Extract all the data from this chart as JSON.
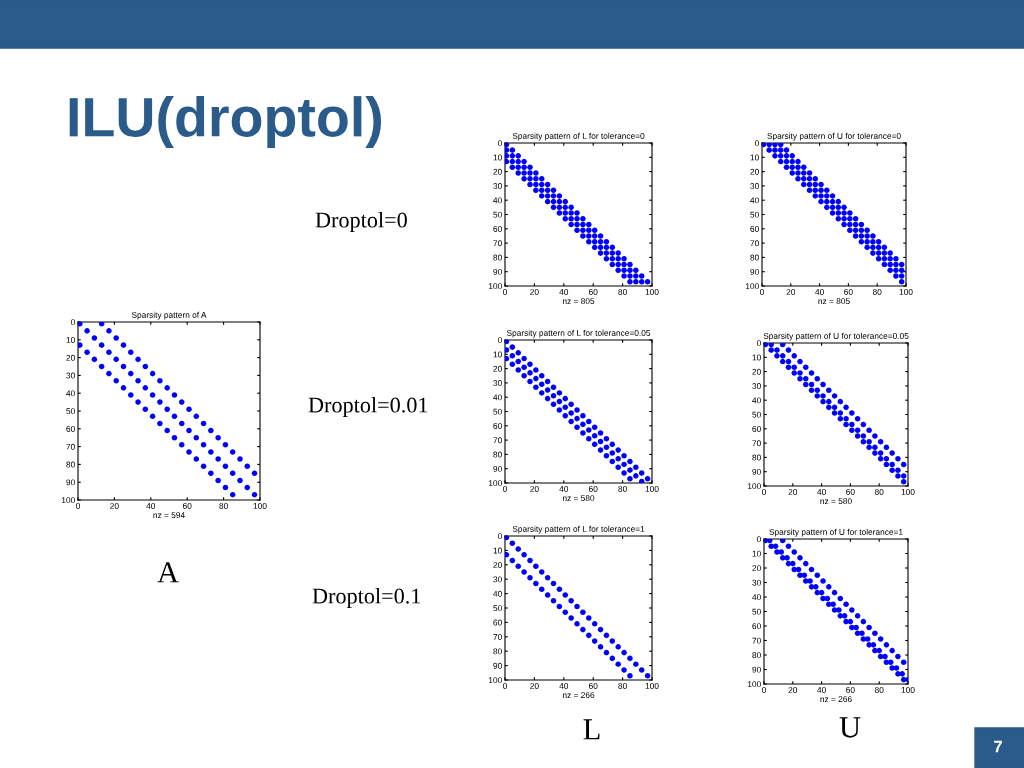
{
  "chart_data": [
    {
      "type": "other",
      "title": "ILU(droptol)",
      "annotations": [
        "Droptol=0",
        "Droptol=0.01",
        "Droptol=0.1",
        "A",
        "L",
        "U",
        "7"
      ]
    },
    {
      "type": "scatter",
      "title": "Sparsity pattern of A",
      "xlabel": "nz = 594",
      "xlim": [
        0,
        100
      ],
      "ylim": [
        100,
        0
      ],
      "xticks": [
        0,
        20,
        40,
        60,
        80,
        100
      ],
      "yticks": [
        0,
        10,
        20,
        30,
        40,
        50,
        60,
        70,
        80,
        90,
        100
      ],
      "marker": "circle",
      "series": [
        {
          "color": "#0000ff",
          "x": [
            1,
            5,
            9,
            13,
            17,
            21,
            25,
            29,
            33,
            37,
            41,
            45,
            49,
            53,
            57,
            61,
            65,
            69,
            73,
            77,
            81,
            85,
            89,
            93,
            97
          ],
          "values": [
            1,
            5,
            9,
            13,
            17,
            21,
            25,
            29,
            33,
            37,
            41,
            45,
            49,
            53,
            57,
            61,
            65,
            69,
            73,
            77,
            81,
            85,
            89,
            93,
            97
          ]
        },
        {
          "color": "#0000ff",
          "x": [
            13,
            17,
            21,
            25,
            29,
            33,
            37,
            41,
            45,
            49,
            53,
            57,
            61,
            65,
            69,
            73,
            77,
            81,
            85,
            89,
            93,
            97
          ],
          "values": [
            1,
            5,
            9,
            13,
            17,
            21,
            25,
            29,
            33,
            37,
            41,
            45,
            49,
            53,
            57,
            61,
            65,
            69,
            73,
            77,
            81,
            85
          ]
        },
        {
          "color": "#0000ff",
          "x": [
            1,
            5,
            9,
            13,
            17,
            21,
            25,
            29,
            33,
            37,
            41,
            45,
            49,
            53,
            57,
            61,
            65,
            69,
            73,
            77,
            81,
            85
          ],
          "values": [
            13,
            17,
            21,
            25,
            29,
            33,
            37,
            41,
            45,
            49,
            53,
            57,
            61,
            65,
            69,
            73,
            77,
            81,
            85,
            89,
            93,
            97
          ]
        }
      ]
    },
    {
      "type": "scatter",
      "title": "Sparsity pattern of L for tolerance=0",
      "xlabel": "nz = 805",
      "xlim": [
        0,
        100
      ],
      "ylim": [
        100,
        0
      ],
      "xticks": [
        0,
        20,
        40,
        60,
        80,
        100
      ],
      "yticks": [
        0,
        10,
        20,
        30,
        40,
        50,
        60,
        70,
        80,
        90,
        100
      ],
      "marker": "circle",
      "series": [
        {
          "color": "#0000ff",
          "x": [
            1,
            5,
            9,
            13,
            17,
            21,
            25,
            29,
            33,
            37,
            41,
            45,
            49,
            53,
            57,
            61,
            65,
            69,
            73,
            77,
            81,
            85,
            89,
            93,
            97
          ],
          "values": [
            1,
            5,
            9,
            13,
            17,
            21,
            25,
            29,
            33,
            37,
            41,
            45,
            49,
            53,
            57,
            61,
            65,
            69,
            73,
            77,
            81,
            85,
            89,
            93,
            97
          ]
        },
        {
          "color": "#0000ff",
          "x": [
            1,
            5,
            9,
            13,
            17,
            21,
            25,
            29,
            33,
            37,
            41,
            45,
            49,
            53,
            57,
            61,
            65,
            69,
            73,
            77,
            81,
            85,
            89,
            93
          ],
          "values": [
            5,
            9,
            13,
            17,
            21,
            25,
            29,
            33,
            37,
            41,
            45,
            49,
            53,
            57,
            61,
            65,
            69,
            73,
            77,
            81,
            85,
            89,
            93,
            97
          ]
        },
        {
          "color": "#0000ff",
          "x": [
            1,
            5,
            9,
            13,
            17,
            21,
            25,
            29,
            33,
            37,
            41,
            45,
            49,
            53,
            57,
            61,
            65,
            69,
            73,
            77,
            81,
            85,
            89
          ],
          "values": [
            9,
            13,
            17,
            21,
            25,
            29,
            33,
            37,
            41,
            45,
            49,
            53,
            57,
            61,
            65,
            69,
            73,
            77,
            81,
            85,
            89,
            93,
            97
          ]
        },
        {
          "color": "#0000ff",
          "x": [
            1,
            5,
            9,
            13,
            17,
            21,
            25,
            29,
            33,
            37,
            41,
            45,
            49,
            53,
            57,
            61,
            65,
            69,
            73,
            77,
            81,
            85
          ],
          "values": [
            13,
            17,
            21,
            25,
            29,
            33,
            37,
            41,
            45,
            49,
            53,
            57,
            61,
            65,
            69,
            73,
            77,
            81,
            85,
            89,
            93,
            97
          ]
        }
      ]
    },
    {
      "type": "scatter",
      "title": "Sparsity pattern of U for tolerance=0",
      "xlabel": "nz = 805",
      "xlim": [
        0,
        100
      ],
      "ylim": [
        100,
        0
      ],
      "xticks": [
        0,
        20,
        40,
        60,
        80,
        100
      ],
      "yticks": [
        0,
        10,
        20,
        30,
        40,
        50,
        60,
        70,
        80,
        90,
        100
      ],
      "marker": "circle",
      "series": [
        {
          "color": "#0000ff",
          "x": [
            1,
            5,
            9,
            13,
            17,
            21,
            25,
            29,
            33,
            37,
            41,
            45,
            49,
            53,
            57,
            61,
            65,
            69,
            73,
            77,
            81,
            85,
            89,
            93,
            97
          ],
          "values": [
            1,
            5,
            9,
            13,
            17,
            21,
            25,
            29,
            33,
            37,
            41,
            45,
            49,
            53,
            57,
            61,
            65,
            69,
            73,
            77,
            81,
            85,
            89,
            93,
            97
          ]
        },
        {
          "color": "#0000ff",
          "x": [
            5,
            9,
            13,
            17,
            21,
            25,
            29,
            33,
            37,
            41,
            45,
            49,
            53,
            57,
            61,
            65,
            69,
            73,
            77,
            81,
            85,
            89,
            93,
            97
          ],
          "values": [
            1,
            5,
            9,
            13,
            17,
            21,
            25,
            29,
            33,
            37,
            41,
            45,
            49,
            53,
            57,
            61,
            65,
            69,
            73,
            77,
            81,
            85,
            89,
            93
          ]
        },
        {
          "color": "#0000ff",
          "x": [
            9,
            13,
            17,
            21,
            25,
            29,
            33,
            37,
            41,
            45,
            49,
            53,
            57,
            61,
            65,
            69,
            73,
            77,
            81,
            85,
            89,
            93,
            97
          ],
          "values": [
            1,
            5,
            9,
            13,
            17,
            21,
            25,
            29,
            33,
            37,
            41,
            45,
            49,
            53,
            57,
            61,
            65,
            69,
            73,
            77,
            81,
            85,
            89
          ]
        },
        {
          "color": "#0000ff",
          "x": [
            13,
            17,
            21,
            25,
            29,
            33,
            37,
            41,
            45,
            49,
            53,
            57,
            61,
            65,
            69,
            73,
            77,
            81,
            85,
            89,
            93,
            97
          ],
          "values": [
            1,
            5,
            9,
            13,
            17,
            21,
            25,
            29,
            33,
            37,
            41,
            45,
            49,
            53,
            57,
            61,
            65,
            69,
            73,
            77,
            81,
            85
          ]
        }
      ]
    },
    {
      "type": "scatter",
      "title": "Sparsity pattern of L for tolerance=0.05",
      "xlabel": "nz = 580",
      "xlim": [
        0,
        100
      ],
      "ylim": [
        100,
        0
      ],
      "xticks": [
        0,
        20,
        40,
        60,
        80,
        100
      ],
      "yticks": [
        0,
        10,
        20,
        30,
        40,
        50,
        60,
        70,
        80,
        90,
        100
      ],
      "marker": "circle",
      "series": [
        {
          "color": "#0000ff",
          "x": [
            1,
            5,
            9,
            13,
            17,
            21,
            25,
            29,
            33,
            37,
            41,
            45,
            49,
            53,
            57,
            61,
            65,
            69,
            73,
            77,
            81,
            85,
            89,
            93,
            97
          ],
          "values": [
            1,
            5,
            9,
            13,
            17,
            21,
            25,
            29,
            33,
            37,
            41,
            45,
            49,
            53,
            57,
            61,
            65,
            69,
            73,
            77,
            81,
            85,
            89,
            93,
            97
          ]
        },
        {
          "color": "#0000ff",
          "x": [
            1,
            5,
            9,
            13,
            17,
            21,
            25,
            29,
            33,
            37,
            41,
            45,
            49,
            53,
            57,
            61,
            65,
            69,
            73,
            77,
            81,
            85,
            89,
            93
          ],
          "values": [
            7,
            11,
            15,
            19,
            23,
            27,
            31,
            35,
            39,
            43,
            47,
            51,
            55,
            59,
            63,
            67,
            71,
            75,
            79,
            83,
            87,
            91,
            95,
            99
          ]
        },
        {
          "color": "#0000ff",
          "x": [
            1,
            5,
            9,
            13,
            17,
            21,
            25,
            29,
            33,
            37,
            41,
            45,
            49,
            53,
            57,
            61,
            65,
            69,
            73,
            77,
            81,
            85
          ],
          "values": [
            13,
            17,
            21,
            25,
            29,
            33,
            37,
            41,
            45,
            49,
            53,
            57,
            61,
            65,
            69,
            73,
            77,
            81,
            85,
            89,
            93,
            97
          ]
        }
      ]
    },
    {
      "type": "scatter",
      "title": "Sparsity pattern of U for tolerance=0.05",
      "xlabel": "nz = 580",
      "xlim": [
        0,
        100
      ],
      "ylim": [
        100,
        0
      ],
      "xticks": [
        0,
        20,
        40,
        60,
        80,
        100
      ],
      "yticks": [
        0,
        10,
        20,
        30,
        40,
        50,
        60,
        70,
        80,
        90,
        100
      ],
      "marker": "circle",
      "series": [
        {
          "color": "#0000ff",
          "x": [
            1,
            5,
            9,
            13,
            17,
            21,
            25,
            29,
            33,
            37,
            41,
            45,
            49,
            53,
            57,
            61,
            65,
            69,
            73,
            77,
            81,
            85,
            89,
            93,
            97
          ],
          "values": [
            1,
            5,
            9,
            13,
            17,
            21,
            25,
            29,
            33,
            37,
            41,
            45,
            49,
            53,
            57,
            61,
            65,
            69,
            73,
            77,
            81,
            85,
            89,
            93,
            97
          ]
        },
        {
          "color": "#0000ff",
          "x": [
            5,
            9,
            13,
            17,
            21,
            25,
            29,
            33,
            37,
            41,
            45,
            49,
            53,
            57,
            61,
            65,
            69,
            73,
            77,
            81,
            85,
            89,
            93,
            97
          ],
          "values": [
            1,
            5,
            9,
            13,
            17,
            21,
            25,
            29,
            33,
            37,
            41,
            45,
            49,
            53,
            57,
            61,
            65,
            69,
            73,
            77,
            81,
            85,
            89,
            93
          ]
        },
        {
          "color": "#0000ff",
          "x": [
            13,
            17,
            21,
            25,
            29,
            33,
            37,
            41,
            45,
            49,
            53,
            57,
            61,
            65,
            69,
            73,
            77,
            81,
            85,
            89,
            93,
            97
          ],
          "values": [
            1,
            5,
            9,
            13,
            17,
            21,
            25,
            29,
            33,
            37,
            41,
            45,
            49,
            53,
            57,
            61,
            65,
            69,
            73,
            77,
            81,
            85
          ]
        }
      ]
    },
    {
      "type": "scatter",
      "title": "Sparsity pattern of L for tolerance=1",
      "xlabel": "nz = 266",
      "xlim": [
        0,
        100
      ],
      "ylim": [
        100,
        0
      ],
      "xticks": [
        0,
        20,
        40,
        60,
        80,
        100
      ],
      "yticks": [
        0,
        10,
        20,
        30,
        40,
        50,
        60,
        70,
        80,
        90,
        100
      ],
      "marker": "circle",
      "series": [
        {
          "color": "#0000ff",
          "x": [
            1,
            5,
            9,
            13,
            17,
            21,
            25,
            29,
            33,
            37,
            41,
            45,
            49,
            53,
            57,
            61,
            65,
            69,
            73,
            77,
            81,
            85,
            89,
            93,
            97
          ],
          "values": [
            1,
            5,
            9,
            13,
            17,
            21,
            25,
            29,
            33,
            37,
            41,
            45,
            49,
            53,
            57,
            61,
            65,
            69,
            73,
            77,
            81,
            85,
            89,
            93,
            97
          ]
        },
        {
          "color": "#0000ff",
          "x": [
            1,
            5,
            9,
            13,
            17,
            21,
            25,
            29,
            33,
            37,
            41,
            45,
            49,
            53,
            57,
            61,
            65,
            69,
            73,
            77,
            81,
            85
          ],
          "values": [
            13,
            17,
            21,
            25,
            29,
            33,
            37,
            41,
            45,
            49,
            53,
            57,
            61,
            65,
            69,
            73,
            77,
            81,
            85,
            89,
            93,
            97
          ]
        }
      ]
    },
    {
      "type": "scatter",
      "title": "Sparsity pattern of U for tolerance=1",
      "xlabel": "nz = 266",
      "xlim": [
        0,
        100
      ],
      "ylim": [
        100,
        0
      ],
      "xticks": [
        0,
        20,
        40,
        60,
        80,
        100
      ],
      "yticks": [
        0,
        10,
        20,
        30,
        40,
        50,
        60,
        70,
        80,
        90,
        100
      ],
      "marker": "circle",
      "series": [
        {
          "color": "#0000ff",
          "x": [
            1,
            5,
            9,
            13,
            17,
            21,
            25,
            29,
            33,
            37,
            41,
            45,
            49,
            53,
            57,
            61,
            65,
            69,
            73,
            77,
            81,
            85,
            89,
            93,
            97
          ],
          "values": [
            1,
            5,
            9,
            13,
            17,
            21,
            25,
            29,
            33,
            37,
            41,
            45,
            49,
            53,
            57,
            61,
            65,
            69,
            73,
            77,
            81,
            85,
            89,
            93,
            97
          ]
        },
        {
          "color": "#0000ff",
          "x": [
            4,
            8,
            12,
            16,
            20,
            24,
            28,
            32,
            36,
            40,
            44,
            48,
            52,
            56,
            60,
            64,
            68,
            72,
            76,
            80,
            84,
            88,
            92,
            96,
            100
          ],
          "values": [
            1,
            5,
            9,
            13,
            17,
            21,
            25,
            29,
            33,
            37,
            41,
            45,
            49,
            53,
            57,
            61,
            65,
            69,
            73,
            77,
            81,
            85,
            89,
            93,
            97
          ]
        },
        {
          "color": "#0000ff",
          "x": [
            13,
            17,
            21,
            25,
            29,
            33,
            37,
            41,
            45,
            49,
            53,
            57,
            61,
            65,
            69,
            73,
            77,
            81,
            85,
            89,
            93,
            97
          ],
          "values": [
            1,
            5,
            9,
            13,
            17,
            21,
            25,
            29,
            33,
            37,
            41,
            45,
            49,
            53,
            57,
            61,
            65,
            69,
            73,
            77,
            81,
            85
          ]
        }
      ]
    }
  ]
}
